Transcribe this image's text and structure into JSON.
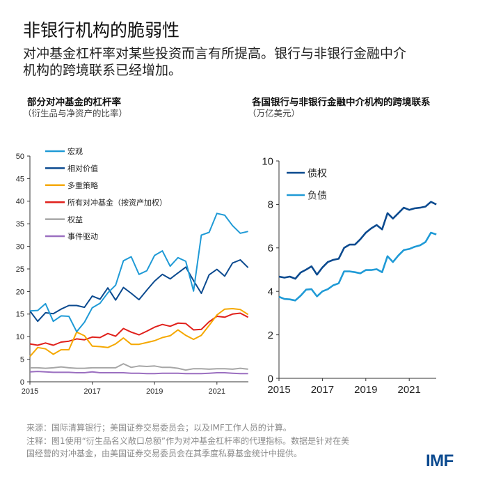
{
  "header": {
    "title": "非银行机构的脆弱性",
    "subtitle_line1": "对冲基金杠杆率对某些投资而言有所提高。银行与非银行金融中介",
    "subtitle_line2": "机构的跨境联系已经增加。"
  },
  "footer": {
    "source": "来源：国际清算银行；美国证券交易委员会；以及IMF工作人员的计算。",
    "note_line1": "注释：图1使用“衍生品名义敞口总额”作为对冲基金杠杆率的代理指标。数据是针对在美",
    "note_line2": "国经营的对冲基金，由美国证券交易委员会在其季度私募基金统计中提供。",
    "logo": "IMF"
  },
  "chart_data": [
    {
      "type": "line",
      "title": "部分对冲基金的杠杆率",
      "ylabel": "（衍生品与净资产的比率）",
      "ylim": [
        0,
        50
      ],
      "yticks": [
        "0",
        "5",
        "10",
        "15",
        "20",
        "25",
        "30",
        "35",
        "40",
        "45",
        "50"
      ],
      "xticks": [
        "2015",
        "2017",
        "2019",
        "2021"
      ],
      "grid": false,
      "legend": "top-left",
      "x": [
        "2015Q1",
        "2015Q2",
        "2015Q3",
        "2015Q4",
        "2016Q1",
        "2016Q2",
        "2016Q3",
        "2016Q4",
        "2017Q1",
        "2017Q2",
        "2017Q3",
        "2017Q4",
        "2018Q1",
        "2018Q2",
        "2018Q3",
        "2018Q4",
        "2019Q1",
        "2019Q2",
        "2019Q3",
        "2019Q4",
        "2020Q1",
        "2020Q2",
        "2020Q3",
        "2020Q4",
        "2021Q1",
        "2021Q2",
        "2021Q3",
        "2021Q4",
        "2022Q1"
      ],
      "series": [
        {
          "name": "宏观",
          "color": "#1f9ad6",
          "values": [
            15.7,
            15.8,
            17.3,
            13.4,
            14.6,
            14.5,
            11.1,
            13.2,
            16.4,
            17.4,
            19.7,
            21.4,
            26.8,
            27.7,
            23.8,
            24.6,
            28.0,
            29.0,
            25.6,
            27.5,
            26.7,
            20.1,
            32.5,
            33.1,
            37.3,
            36.9,
            34.6,
            32.9,
            33.3
          ]
        },
        {
          "name": "相对价值",
          "color": "#0b4a8f",
          "values": [
            15.7,
            13.4,
            15.3,
            15.1,
            16.1,
            16.9,
            16.9,
            16.5,
            19.0,
            18.3,
            20.8,
            18.1,
            20.9,
            19.6,
            18.2,
            20.3,
            22.3,
            23.8,
            22.8,
            24.1,
            25.4,
            22.4,
            19.6,
            23.7,
            24.9,
            23.4,
            26.3,
            27.0,
            25.3
          ]
        },
        {
          "name": "多重策略",
          "color": "#f5a800",
          "values": [
            5.6,
            7.6,
            7.3,
            6.1,
            7.1,
            7.1,
            11.0,
            10.2,
            7.9,
            7.8,
            7.6,
            8.4,
            9.7,
            8.3,
            8.3,
            8.7,
            9.1,
            9.8,
            10.2,
            11.5,
            10.3,
            9.4,
            10.3,
            12.5,
            14.8,
            16.1,
            16.2,
            16.0,
            14.9
          ]
        },
        {
          "name": "所有对冲基金（按资产加权）",
          "color": "#e0201b",
          "values": [
            8.4,
            8.1,
            8.6,
            8.1,
            8.8,
            9.0,
            9.5,
            9.3,
            9.9,
            9.8,
            10.7,
            10.1,
            11.8,
            11.0,
            10.4,
            11.2,
            12.1,
            12.7,
            12.3,
            13.0,
            12.9,
            11.5,
            11.6,
            13.3,
            14.5,
            14.3,
            15.0,
            15.2,
            14.3
          ]
        },
        {
          "name": "权益",
          "color": "#a6a6a6",
          "values": [
            3.1,
            3.1,
            3.0,
            3.1,
            3.3,
            3.1,
            3.0,
            3.0,
            3.1,
            3.1,
            3.1,
            3.1,
            4.0,
            3.2,
            3.5,
            3.4,
            3.5,
            3.2,
            3.2,
            3.0,
            2.6,
            2.9,
            2.9,
            2.8,
            2.9,
            2.9,
            2.8,
            3.0,
            2.8
          ]
        },
        {
          "name": "事件驱动",
          "color": "#9b6fc0",
          "values": [
            2.2,
            2.3,
            2.2,
            2.1,
            2.1,
            2.1,
            2.0,
            2.0,
            2.2,
            2.0,
            2.0,
            2.0,
            2.0,
            1.9,
            1.9,
            1.8,
            1.8,
            1.9,
            1.9,
            1.9,
            1.8,
            1.8,
            1.8,
            1.9,
            2.0,
            2.0,
            1.9,
            1.8,
            1.8
          ]
        }
      ]
    },
    {
      "type": "line",
      "title": "各国银行与非银行金融中介机构的跨境联系",
      "ylabel": "（万亿美元）",
      "ylim": [
        0,
        10
      ],
      "yticks": [
        "0",
        "2",
        "4",
        "6",
        "8",
        "10"
      ],
      "xticks": [
        "2015",
        "2017",
        "2019",
        "2021"
      ],
      "grid": false,
      "legend": "top-left",
      "x": [
        "2015Q1",
        "2015Q2",
        "2015Q3",
        "2015Q4",
        "2016Q1",
        "2016Q2",
        "2016Q3",
        "2016Q4",
        "2017Q1",
        "2017Q2",
        "2017Q3",
        "2017Q4",
        "2018Q1",
        "2018Q2",
        "2018Q3",
        "2018Q4",
        "2019Q1",
        "2019Q2",
        "2019Q3",
        "2019Q4",
        "2020Q1",
        "2020Q2",
        "2020Q3",
        "2020Q4",
        "2021Q1",
        "2021Q2",
        "2021Q3",
        "2021Q4",
        "2022Q1",
        "2022Q2"
      ],
      "series": [
        {
          "name": "债权",
          "color": "#0b4a8f",
          "values": [
            4.68,
            4.63,
            4.68,
            4.58,
            4.87,
            5.0,
            5.15,
            4.77,
            5.1,
            5.35,
            5.45,
            5.5,
            6.0,
            6.15,
            6.15,
            6.4,
            6.7,
            6.9,
            7.05,
            6.85,
            7.6,
            7.35,
            7.6,
            7.85,
            7.75,
            7.82,
            7.85,
            7.9,
            8.12,
            8.0
          ]
        },
        {
          "name": "负债",
          "color": "#1f9ad6",
          "values": [
            3.75,
            3.65,
            3.63,
            3.58,
            3.8,
            4.08,
            4.1,
            3.77,
            4.0,
            4.1,
            4.28,
            4.37,
            4.92,
            4.92,
            4.88,
            4.83,
            4.98,
            4.98,
            5.02,
            4.88,
            5.62,
            5.35,
            5.65,
            5.9,
            5.95,
            6.05,
            6.12,
            6.27,
            6.7,
            6.62
          ]
        }
      ]
    }
  ]
}
